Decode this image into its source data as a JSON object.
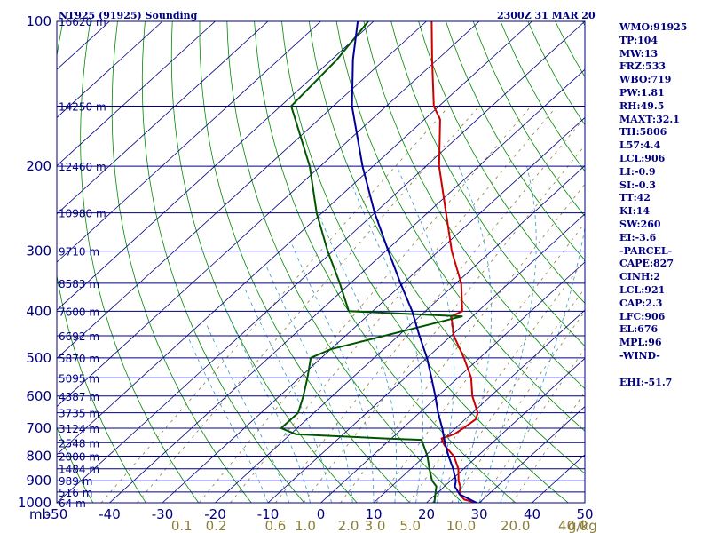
{
  "header": {
    "station": "NT925 (91925) Sounding",
    "time": "2300Z 31 MAR 20",
    "unit_mb": "mb",
    "unit_gkg": "g/kg"
  },
  "colors": {
    "frame": "#000080",
    "isobar": "#000080",
    "isotherm": "#000080",
    "dry_adiabat": "#008800",
    "moist_adiabat": "#3399cc",
    "mixing_ratio": "#8b7d3a",
    "temperature": "#cc0000",
    "dewpoint": "#005500",
    "parcel": "#000099"
  },
  "indices": [
    "WMO:91925",
    "TP:104",
    "MW:13",
    "FRZ:533",
    "WBO:719",
    "PW:1.81",
    "RH:49.5",
    "MAXT:32.1",
    "TH:5806",
    "L57:4.4",
    "LCL:906",
    "LI:-0.9",
    "SI:-0.3",
    "TT:42",
    "KI:14",
    "SW:260",
    "EI:-3.6",
    "-PARCEL-",
    "CAPE:827",
    "CINH:2",
    "LCL:921",
    "CAP:2.3",
    "LFC:906",
    "EL:676",
    "MPL:96",
    "-WIND-",
    "",
    "EHI:-51.7"
  ],
  "chart_data": {
    "type": "line",
    "subtype": "skew-t log-p",
    "pressure_axis": {
      "range": [
        1000,
        100
      ],
      "scale": "log",
      "tick_labels": [
        "100",
        "200",
        "300",
        "400",
        "500",
        "600",
        "700",
        "800",
        "900",
        "1000"
      ]
    },
    "temperature_axis": {
      "range": [
        -50,
        50
      ],
      "tick_labels": [
        "-50",
        "-40",
        "-30",
        "-20",
        "-10",
        "0",
        "10",
        "20",
        "30",
        "40",
        "50"
      ]
    },
    "mixing_ratio_labels": [
      "0.1",
      "0.2",
      "0.6",
      "1.0",
      "2.0",
      "3.0",
      "5.0",
      "10.0",
      "20.0",
      "40.0"
    ],
    "height_labels": [
      {
        "p": 100,
        "label": "16620 m"
      },
      {
        "p": 150,
        "label": "14250 m"
      },
      {
        "p": 200,
        "label": "12460 m"
      },
      {
        "p": 250,
        "label": "10980 m"
      },
      {
        "p": 300,
        "label": "9710 m"
      },
      {
        "p": 350,
        "label": "8583 m"
      },
      {
        "p": 400,
        "label": "7600 m"
      },
      {
        "p": 450,
        "label": "6692 m"
      },
      {
        "p": 500,
        "label": "5870 m"
      },
      {
        "p": 550,
        "label": "5095 m"
      },
      {
        "p": 600,
        "label": "4387 m"
      },
      {
        "p": 650,
        "label": "3735 m"
      },
      {
        "p": 700,
        "label": "3124 m"
      },
      {
        "p": 750,
        "label": "2548 m"
      },
      {
        "p": 800,
        "label": "2000 m"
      },
      {
        "p": 850,
        "label": "1484 m"
      },
      {
        "p": 900,
        "label": "989 m"
      },
      {
        "p": 950,
        "label": "516 m"
      },
      {
        "p": 1000,
        "label": "64 m"
      }
    ],
    "series": [
      {
        "key": "temperature",
        "points": [
          {
            "p": 1000,
            "t": 29.5
          },
          {
            "p": 985,
            "t": 26.5
          },
          {
            "p": 960,
            "t": 24.5
          },
          {
            "p": 925,
            "t": 23.0
          },
          {
            "p": 900,
            "t": 21.5
          },
          {
            "p": 850,
            "t": 19.0
          },
          {
            "p": 800,
            "t": 15.5
          },
          {
            "p": 760,
            "t": 11.5
          },
          {
            "p": 735,
            "t": 9.5
          },
          {
            "p": 720,
            "t": 11.0
          },
          {
            "p": 700,
            "t": 11.5
          },
          {
            "p": 670,
            "t": 12.0
          },
          {
            "p": 650,
            "t": 11.0
          },
          {
            "p": 600,
            "t": 6.5
          },
          {
            "p": 550,
            "t": 2.5
          },
          {
            "p": 500,
            "t": -3.0
          },
          {
            "p": 450,
            "t": -9.5
          },
          {
            "p": 410,
            "t": -14.0
          },
          {
            "p": 400,
            "t": -13.0
          },
          {
            "p": 350,
            "t": -19.0
          },
          {
            "p": 300,
            "t": -27.5
          },
          {
            "p": 250,
            "t": -36.5
          },
          {
            "p": 200,
            "t": -47.5
          },
          {
            "p": 160,
            "t": -57.0
          },
          {
            "p": 150,
            "t": -61.0
          },
          {
            "p": 120,
            "t": -71.0
          },
          {
            "p": 100,
            "t": -79.0
          }
        ]
      },
      {
        "key": "dewpoint",
        "points": [
          {
            "p": 1000,
            "t": 21.5
          },
          {
            "p": 950,
            "t": 19.5
          },
          {
            "p": 925,
            "t": 18.5
          },
          {
            "p": 900,
            "t": 16.5
          },
          {
            "p": 850,
            "t": 13.5
          },
          {
            "p": 800,
            "t": 10.5
          },
          {
            "p": 740,
            "t": 6.0
          },
          {
            "p": 735,
            "t": -1.5
          },
          {
            "p": 720,
            "t": -19.0
          },
          {
            "p": 700,
            "t": -23.0
          },
          {
            "p": 650,
            "t": -23.0
          },
          {
            "p": 600,
            "t": -25.5
          },
          {
            "p": 550,
            "t": -28.5
          },
          {
            "p": 500,
            "t": -32.0
          },
          {
            "p": 480,
            "t": -30.0
          },
          {
            "p": 410,
            "t": -12.0
          },
          {
            "p": 400,
            "t": -34.5
          },
          {
            "p": 350,
            "t": -42.0
          },
          {
            "p": 300,
            "t": -51.0
          },
          {
            "p": 250,
            "t": -61.0
          },
          {
            "p": 200,
            "t": -72.0
          },
          {
            "p": 150,
            "t": -88.0
          },
          {
            "p": 120,
            "t": -89.0
          },
          {
            "p": 100,
            "t": -91.0
          }
        ]
      },
      {
        "key": "parcel",
        "points": [
          {
            "p": 1000,
            "t": 29.5
          },
          {
            "p": 960,
            "t": 24.5
          },
          {
            "p": 925,
            "t": 22.0
          },
          {
            "p": 900,
            "t": 21.0
          },
          {
            "p": 850,
            "t": 18.0
          },
          {
            "p": 800,
            "t": 14.5
          },
          {
            "p": 750,
            "t": 11.0
          },
          {
            "p": 700,
            "t": 7.5
          },
          {
            "p": 650,
            "t": 3.5
          },
          {
            "p": 600,
            "t": -0.5
          },
          {
            "p": 550,
            "t": -5.0
          },
          {
            "p": 500,
            "t": -10.0
          },
          {
            "p": 450,
            "t": -16.0
          },
          {
            "p": 400,
            "t": -22.5
          },
          {
            "p": 350,
            "t": -30.5
          },
          {
            "p": 300,
            "t": -39.5
          },
          {
            "p": 250,
            "t": -50.0
          },
          {
            "p": 200,
            "t": -62.0
          },
          {
            "p": 150,
            "t": -76.5
          },
          {
            "p": 120,
            "t": -86.0
          },
          {
            "p": 100,
            "t": -93.0
          }
        ]
      }
    ]
  }
}
